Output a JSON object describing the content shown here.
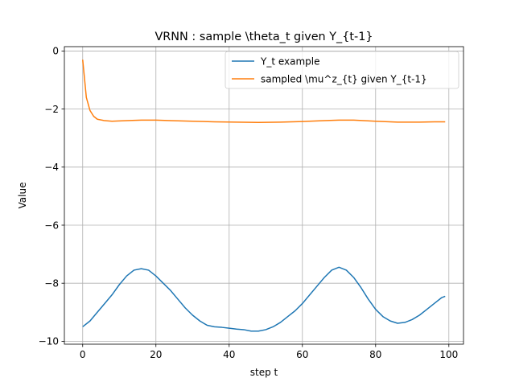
{
  "chart_data": {
    "type": "line",
    "title": "VRNN : sample \\theta_t given Y_{t-1}",
    "xlabel": "step t",
    "ylabel": "Value",
    "xlim": [
      -5,
      104
    ],
    "ylim": [
      -10.1,
      0.15
    ],
    "xticks": [
      0,
      20,
      40,
      60,
      80,
      100
    ],
    "yticks": [
      0,
      -2,
      -4,
      -6,
      -8,
      -10
    ],
    "grid": true,
    "legend_position": "upper right",
    "series": [
      {
        "name": "Y_t example",
        "color": "#1f77b4",
        "points": [
          [
            0,
            -9.5
          ],
          [
            2,
            -9.3
          ],
          [
            4,
            -9.0
          ],
          [
            6,
            -8.7
          ],
          [
            8,
            -8.4
          ],
          [
            10,
            -8.05
          ],
          [
            12,
            -7.75
          ],
          [
            14,
            -7.55
          ],
          [
            16,
            -7.5
          ],
          [
            18,
            -7.55
          ],
          [
            20,
            -7.75
          ],
          [
            22,
            -8.0
          ],
          [
            24,
            -8.25
          ],
          [
            26,
            -8.55
          ],
          [
            28,
            -8.85
          ],
          [
            30,
            -9.1
          ],
          [
            32,
            -9.3
          ],
          [
            34,
            -9.45
          ],
          [
            36,
            -9.5
          ],
          [
            38,
            -9.52
          ],
          [
            40,
            -9.55
          ],
          [
            42,
            -9.58
          ],
          [
            44,
            -9.6
          ],
          [
            46,
            -9.65
          ],
          [
            48,
            -9.65
          ],
          [
            50,
            -9.6
          ],
          [
            52,
            -9.5
          ],
          [
            54,
            -9.35
          ],
          [
            56,
            -9.15
          ],
          [
            58,
            -8.95
          ],
          [
            60,
            -8.7
          ],
          [
            62,
            -8.4
          ],
          [
            64,
            -8.1
          ],
          [
            66,
            -7.8
          ],
          [
            68,
            -7.55
          ],
          [
            70,
            -7.45
          ],
          [
            72,
            -7.55
          ],
          [
            74,
            -7.8
          ],
          [
            76,
            -8.15
          ],
          [
            78,
            -8.55
          ],
          [
            80,
            -8.9
          ],
          [
            82,
            -9.15
          ],
          [
            84,
            -9.3
          ],
          [
            86,
            -9.38
          ],
          [
            88,
            -9.35
          ],
          [
            90,
            -9.25
          ],
          [
            92,
            -9.1
          ],
          [
            94,
            -8.9
          ],
          [
            96,
            -8.7
          ],
          [
            98,
            -8.5
          ],
          [
            99,
            -8.45
          ]
        ]
      },
      {
        "name": "sampled \\mu^z_{t} given Y_{t-1}",
        "color": "#ff7f0e",
        "points": [
          [
            0,
            -0.3
          ],
          [
            1,
            -1.6
          ],
          [
            2,
            -2.05
          ],
          [
            3,
            -2.25
          ],
          [
            4,
            -2.35
          ],
          [
            6,
            -2.4
          ],
          [
            8,
            -2.42
          ],
          [
            12,
            -2.4
          ],
          [
            16,
            -2.38
          ],
          [
            20,
            -2.38
          ],
          [
            24,
            -2.4
          ],
          [
            30,
            -2.42
          ],
          [
            36,
            -2.44
          ],
          [
            42,
            -2.45
          ],
          [
            48,
            -2.46
          ],
          [
            54,
            -2.45
          ],
          [
            60,
            -2.43
          ],
          [
            66,
            -2.4
          ],
          [
            70,
            -2.38
          ],
          [
            74,
            -2.38
          ],
          [
            80,
            -2.42
          ],
          [
            86,
            -2.45
          ],
          [
            92,
            -2.45
          ],
          [
            96,
            -2.44
          ],
          [
            99,
            -2.44
          ]
        ]
      }
    ]
  }
}
